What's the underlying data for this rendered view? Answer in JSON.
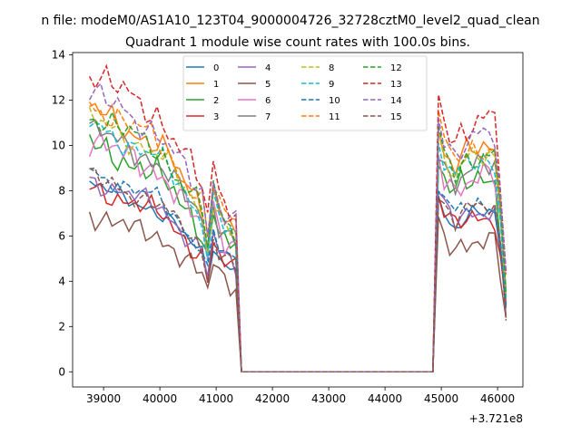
{
  "suptitle": "n file: modeM0/AS1A10_123T04_9000004726_32728cztM0_level2_quad_clean",
  "chart_data": {
    "type": "line",
    "title": "Quadrant 1 module wise count rates with 100.0s bins.",
    "xlabel": "",
    "ylabel": "",
    "x_offset_label": "+3.721e8",
    "xlim": [
      38450,
      46450
    ],
    "ylim": [
      -0.67,
      14.1
    ],
    "xticks": [
      39000,
      40000,
      41000,
      42000,
      43000,
      44000,
      45000,
      46000
    ],
    "xtick_labels": [
      "39000",
      "40000",
      "41000",
      "42000",
      "43000",
      "44000",
      "45000",
      "46000"
    ],
    "yticks": [
      0,
      2,
      4,
      6,
      8,
      10,
      12,
      14
    ],
    "ytick_labels": [
      "0",
      "2",
      "4",
      "6",
      "8",
      "10",
      "12",
      "14"
    ],
    "grid": false,
    "legend": {
      "placement": "upper-center",
      "columns": 4
    },
    "x_grid": {
      "segments": [
        {
          "start": 38750,
          "end": 41450,
          "step": 100
        },
        {
          "start": 41450,
          "end": 44850,
          "step": 3400
        },
        {
          "start": 44850,
          "end": 46150,
          "step": 100
        }
      ]
    },
    "series": [
      {
        "name": "0",
        "color": "#1f77b4",
        "dash": "solid",
        "base": 7.4,
        "osc": 0.2
      },
      {
        "name": "1",
        "color": "#ff7f0e",
        "dash": "solid",
        "base": 10.4,
        "osc": 0.3
      },
      {
        "name": "2",
        "color": "#2ca02c",
        "dash": "solid",
        "base": 9.0,
        "osc": 0.4
      },
      {
        "name": "3",
        "color": "#d62728",
        "dash": "solid",
        "base": 7.3,
        "osc": 0.3
      },
      {
        "name": "4",
        "color": "#9467bd",
        "dash": "solid",
        "base": 7.6,
        "osc": 0.25
      },
      {
        "name": "5",
        "color": "#8c564b",
        "dash": "solid",
        "base": 6.2,
        "osc": 0.35
      },
      {
        "name": "6",
        "color": "#e377c2",
        "dash": "solid",
        "base": 9.2,
        "osc": 0.4
      },
      {
        "name": "7",
        "color": "#7f7f7f",
        "dash": "solid",
        "base": 9.6,
        "osc": 0.3
      },
      {
        "name": "8",
        "color": "#bcbd22",
        "dash": "dashed",
        "base": 10.0,
        "osc": 0.25
      },
      {
        "name": "9",
        "color": "#17becf",
        "dash": "dashed",
        "base": 9.8,
        "osc": 0.25
      },
      {
        "name": "10",
        "color": "#1f77b4",
        "dash": "dashed",
        "base": 7.9,
        "osc": 0.2
      },
      {
        "name": "11",
        "color": "#ff7f0e",
        "dash": "dashed",
        "base": 10.6,
        "osc": 0.3
      },
      {
        "name": "12",
        "color": "#2ca02c",
        "dash": "dashed",
        "base": 10.2,
        "osc": 0.3
      },
      {
        "name": "13",
        "color": "#d62728",
        "dash": "dashed",
        "base": 11.8,
        "osc": 0.35
      },
      {
        "name": "14",
        "color": "#9467bd",
        "dash": "dashed",
        "base": 11.0,
        "osc": 0.3
      },
      {
        "name": "15",
        "color": "#8c564b",
        "dash": "dashed",
        "base": 7.7,
        "osc": 0.25
      }
    ]
  }
}
